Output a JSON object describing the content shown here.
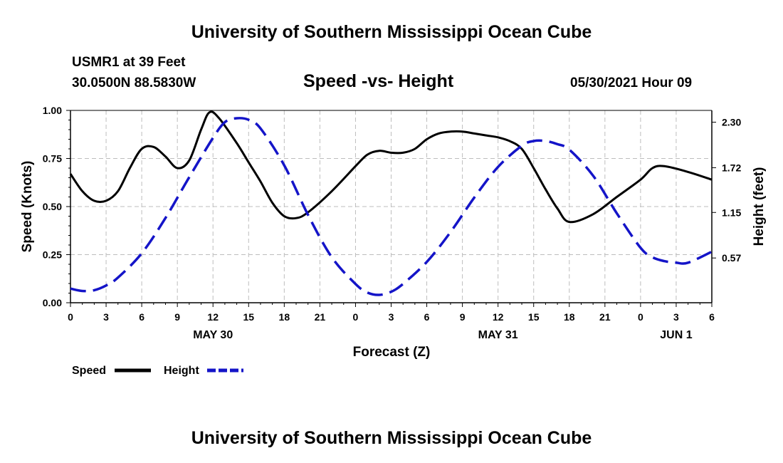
{
  "page": {
    "title_top": "University of Southern Mississippi Ocean Cube",
    "title_bottom": "University of Southern Mississippi Ocean Cube",
    "station": "USMR1 at 39 Feet",
    "location": "30.0500N  88.5830W",
    "run_time": "05/30/2021 Hour 09"
  },
  "chart_data": {
    "type": "line",
    "title": "Speed -vs- Height",
    "xlabel": "Forecast (Z)",
    "ylabel": "Speed (Knots)",
    "y2label": "Height (feet)",
    "xlim": [
      0,
      54
    ],
    "ylim": [
      0,
      1
    ],
    "y2lim": [
      0.0,
      2.45
    ],
    "x_ticks": [
      0,
      3,
      6,
      9,
      12,
      15,
      18,
      21,
      24,
      27,
      30,
      33,
      36,
      39,
      42,
      45,
      48,
      51,
      54
    ],
    "x_tick_labels": [
      "0",
      "3",
      "6",
      "9",
      "12",
      "15",
      "18",
      "21",
      "0",
      "3",
      "6",
      "9",
      "12",
      "15",
      "18",
      "21",
      "0",
      "3",
      "6"
    ],
    "date_labels": [
      {
        "x": 12,
        "text": "MAY 30"
      },
      {
        "x": 36,
        "text": "MAY 31"
      },
      {
        "x": 51,
        "text": "JUN 1"
      }
    ],
    "y_ticks": [
      0,
      0.25,
      0.5,
      0.75,
      1.0
    ],
    "y_tick_labels": [
      "0.00",
      "0.25",
      "0.50",
      "0.75",
      "1.00"
    ],
    "y2_ticks": [
      0.57,
      1.15,
      1.72,
      2.3
    ],
    "y2_tick_labels": [
      "0.57",
      "1.15",
      "1.72",
      "2.30"
    ],
    "grid": true,
    "legend_position": "bottom-left",
    "series": [
      {
        "name": "Speed",
        "axis": "left",
        "color": "#000000",
        "dash": "solid",
        "x": [
          0,
          1,
          2,
          3,
          4,
          5,
          6,
          7,
          8,
          9,
          10,
          11,
          11.7,
          12.5,
          14,
          15,
          16,
          17,
          18,
          19,
          20,
          22,
          24,
          25,
          26,
          27,
          28,
          29,
          30,
          31,
          32,
          33,
          34,
          35,
          36,
          37,
          38,
          39,
          40,
          41,
          42,
          44,
          46,
          48,
          49,
          50,
          52,
          54
        ],
        "y": [
          0.67,
          0.58,
          0.53,
          0.53,
          0.58,
          0.7,
          0.8,
          0.81,
          0.76,
          0.7,
          0.74,
          0.9,
          0.99,
          0.96,
          0.83,
          0.73,
          0.63,
          0.52,
          0.45,
          0.44,
          0.47,
          0.58,
          0.71,
          0.77,
          0.79,
          0.78,
          0.78,
          0.8,
          0.85,
          0.88,
          0.89,
          0.89,
          0.88,
          0.87,
          0.86,
          0.84,
          0.8,
          0.7,
          0.59,
          0.49,
          0.42,
          0.46,
          0.55,
          0.64,
          0.7,
          0.71,
          0.68,
          0.64
        ]
      },
      {
        "name": "Height",
        "axis": "right",
        "color": "#1414c8",
        "dash": "dashed",
        "x": [
          0,
          1,
          2,
          3,
          4,
          6,
          8,
          10,
          12,
          13,
          14,
          15,
          16,
          18,
          20,
          22,
          24,
          25,
          26,
          27,
          28,
          30,
          32,
          34,
          36,
          38,
          39,
          40,
          41,
          42,
          44,
          46,
          48,
          49,
          50,
          51,
          52,
          54
        ],
        "y": [
          0.18,
          0.15,
          0.16,
          0.22,
          0.32,
          0.63,
          1.08,
          1.6,
          2.1,
          2.3,
          2.35,
          2.33,
          2.22,
          1.75,
          1.12,
          0.58,
          0.24,
          0.13,
          0.1,
          0.14,
          0.24,
          0.52,
          0.9,
          1.34,
          1.73,
          2.0,
          2.06,
          2.06,
          2.02,
          1.95,
          1.62,
          1.14,
          0.7,
          0.58,
          0.53,
          0.51,
          0.51,
          0.65
        ]
      }
    ]
  }
}
